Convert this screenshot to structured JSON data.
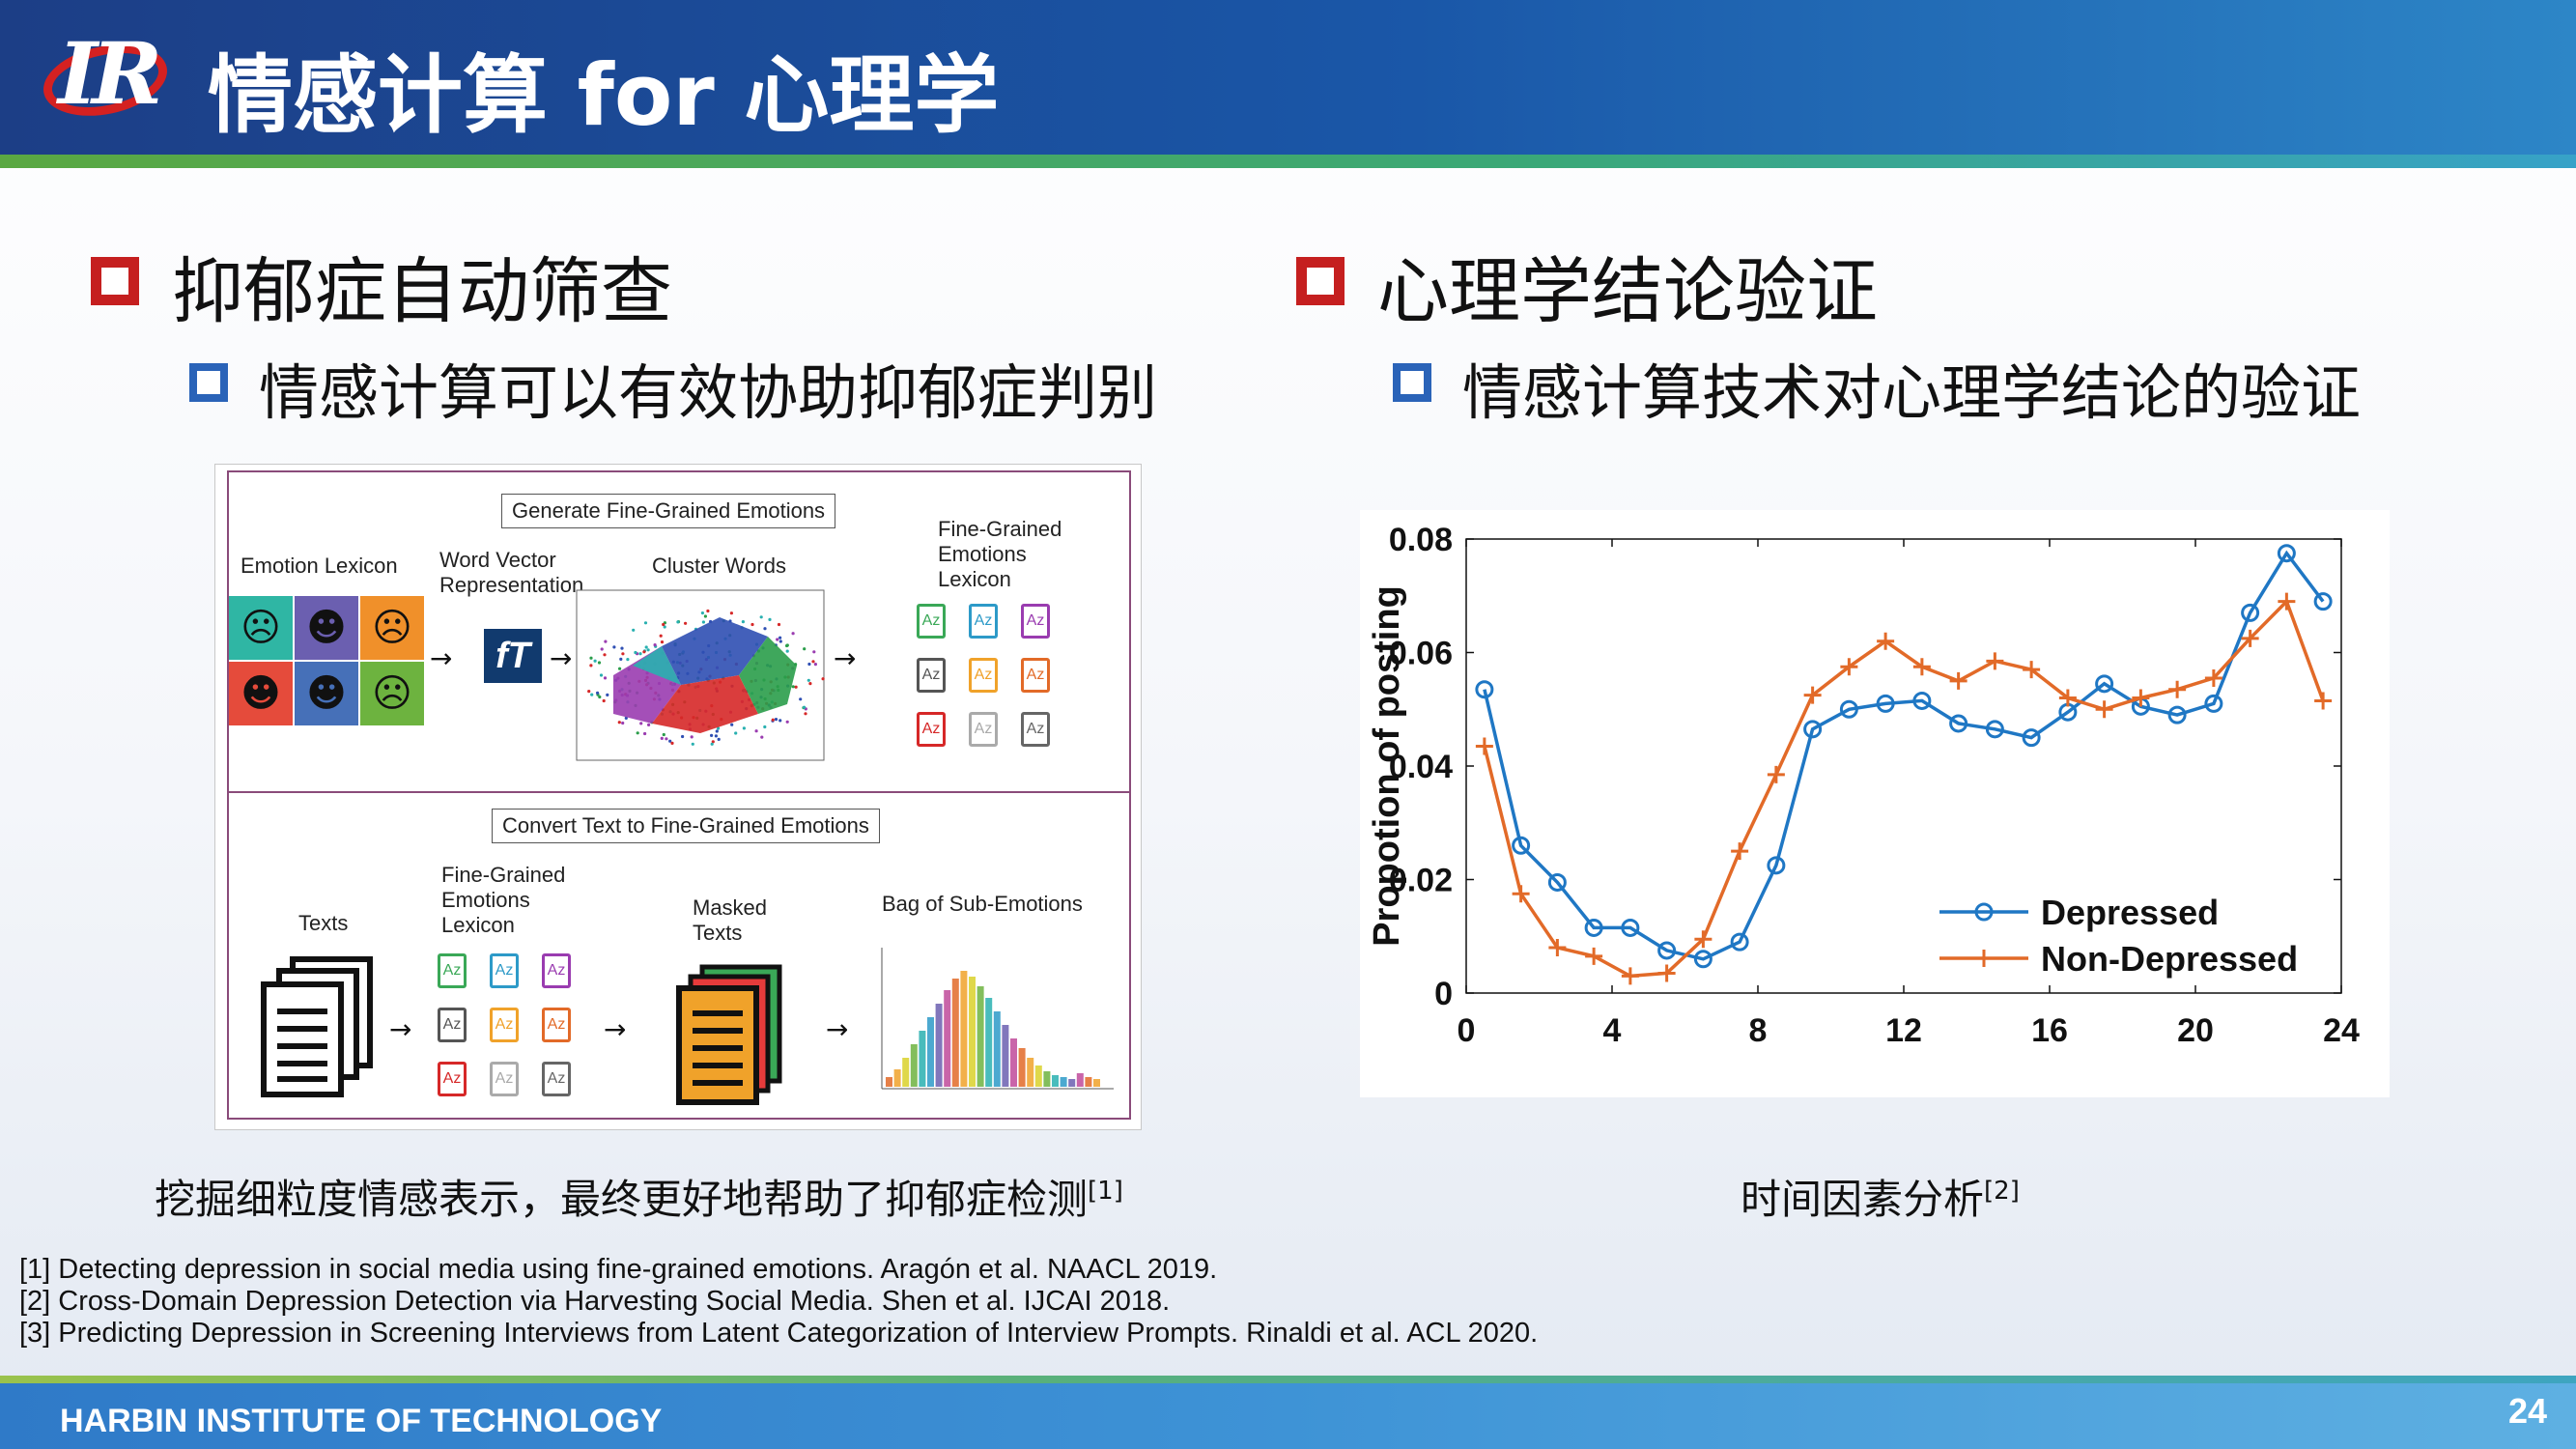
{
  "header": {
    "logo_text": "IR",
    "title": "情感计算 for 心理学"
  },
  "left": {
    "heading": "抑郁症自动筛查",
    "subheading": "情感计算可以有效协助抑郁症判别",
    "figure": {
      "top_box": "Generate Fine-Grained Emotions",
      "emotion_lexicon": "Emotion Lexicon",
      "word_vector": [
        "Word Vector",
        "Representation"
      ],
      "cluster_words": "Cluster Words",
      "fine_grained_lexicon": [
        "Fine-Grained",
        "Emotions",
        "Lexicon"
      ],
      "bottom_box": "Convert Text to Fine-Grained Emotions",
      "texts": "Texts",
      "fine_grained_lexicon2": [
        "Fine-Grained",
        "Emotions",
        "Lexicon"
      ],
      "masked_texts": [
        "Masked",
        "Texts"
      ],
      "bag_of_sub_emotions": "Bag of Sub-Emotions",
      "fasttext_icon": "fasttext-icon",
      "dict_glyph": "Az",
      "face_colors": [
        "#2fb6a4",
        "#6b5fb0",
        "#f0902a",
        "#e54b3b",
        "#4670b8",
        "#6db33f"
      ],
      "face_glyphs": [
        "☹",
        "☻",
        "☹",
        "☻",
        "☻",
        "☹"
      ]
    },
    "caption": "挖掘细粒度情感表示，最终更好地帮助了抑郁症检测",
    "caption_ref": "[1]"
  },
  "right": {
    "heading": "心理学结论验证",
    "subheading": "情感计算技术对心理学结论的验证",
    "caption": "时间因素分析",
    "caption_ref": "[2]"
  },
  "chart_data": {
    "type": "line",
    "ylabel": "Propotion of posting",
    "xlabel": "",
    "xlim": [
      0,
      24
    ],
    "ylim": [
      0,
      0.08
    ],
    "xticks": [
      0,
      4,
      8,
      12,
      16,
      20,
      24
    ],
    "yticks": [
      "0",
      "0.02",
      "0.04",
      "0.06",
      "0.08"
    ],
    "legend_position": "bottom-right",
    "series": [
      {
        "name": "Depressed",
        "color": "#1f77c4",
        "marker": "circle",
        "x": [
          0.5,
          1.5,
          2.5,
          3.5,
          4.5,
          5.5,
          6.5,
          7.5,
          8.5,
          9.5,
          10.5,
          11.5,
          12.5,
          13.5,
          14.5,
          15.5,
          16.5,
          17.5,
          18.5,
          19.5,
          20.5,
          21.5,
          22.5,
          23.5
        ],
        "y": [
          0.0535,
          0.026,
          0.0195,
          0.0115,
          0.0115,
          0.0075,
          0.006,
          0.009,
          0.0225,
          0.0465,
          0.05,
          0.051,
          0.0515,
          0.0475,
          0.0465,
          0.045,
          0.0495,
          0.0545,
          0.0505,
          0.049,
          0.051,
          0.067,
          0.0775,
          0.069
        ]
      },
      {
        "name": "Non-Depressed",
        "color": "#e26a28",
        "marker": "plus",
        "x": [
          0.5,
          1.5,
          2.5,
          3.5,
          4.5,
          5.5,
          6.5,
          7.5,
          8.5,
          9.5,
          10.5,
          11.5,
          12.5,
          13.5,
          14.5,
          15.5,
          16.5,
          17.5,
          18.5,
          19.5,
          20.5,
          21.5,
          22.5,
          23.5
        ],
        "y": [
          0.0435,
          0.0175,
          0.008,
          0.0065,
          0.003,
          0.0035,
          0.0095,
          0.025,
          0.0385,
          0.0525,
          0.0575,
          0.062,
          0.0575,
          0.055,
          0.0585,
          0.057,
          0.052,
          0.05,
          0.052,
          0.0535,
          0.0555,
          0.0625,
          0.069,
          0.0515
        ]
      }
    ]
  },
  "references": [
    "[1] Detecting depression in social media using fine-grained emotions. Aragón et al. NAACL 2019.",
    "[2] Cross-Domain Depression Detection via Harvesting Social Media. Shen et al. IJCAI 2018.",
    "[3] Predicting Depression in Screening Interviews from Latent Categorization of Interview Prompts. Rinaldi et al. ACL 2020."
  ],
  "footer": {
    "institution": "HARBIN INSTITUTE OF TECHNOLOGY",
    "page_number": "24"
  },
  "colors": {
    "header_blue": "#1c3e86",
    "bullet_red": "#c51f1f",
    "bullet_blue": "#2a63b8"
  }
}
